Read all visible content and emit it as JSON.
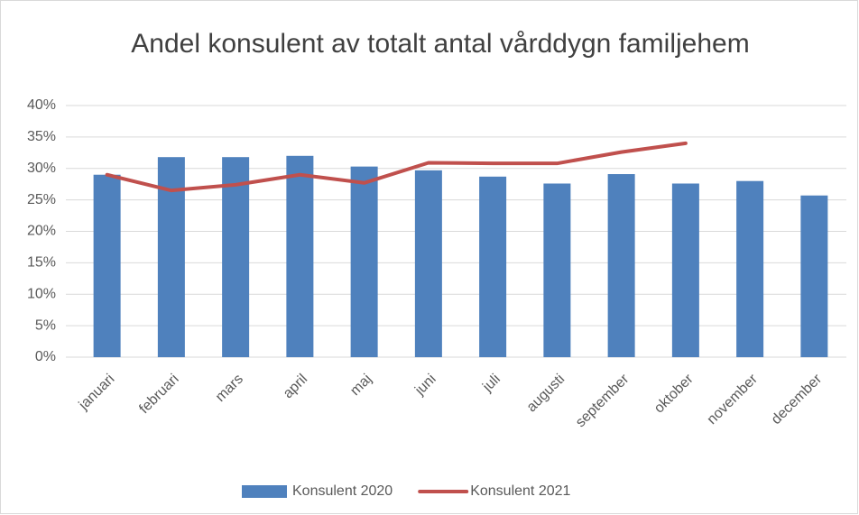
{
  "chart_data": {
    "type": "bar",
    "title": "Andel konsulent av totalt antal vårddygn familjehem",
    "categories": [
      "januari",
      "februari",
      "mars",
      "april",
      "maj",
      "juni",
      "juli",
      "augusti",
      "september",
      "oktober",
      "november",
      "december"
    ],
    "series": [
      {
        "name": "Konsulent 2020",
        "type": "bar",
        "color": "#4f81bd",
        "values": [
          29.0,
          31.8,
          31.8,
          32.0,
          30.3,
          29.7,
          28.7,
          27.6,
          29.1,
          27.6,
          28.0,
          25.7
        ]
      },
      {
        "name": "Konsulent 2021",
        "type": "line",
        "color": "#c0504d",
        "values": [
          29.0,
          26.5,
          27.4,
          29.0,
          27.7,
          30.9,
          30.8,
          30.8,
          32.6,
          34.0,
          null,
          null
        ]
      }
    ],
    "ylim": [
      0,
      40
    ],
    "yticks": [
      {
        "value": 0,
        "label": "0%"
      },
      {
        "value": 5,
        "label": "5%"
      },
      {
        "value": 10,
        "label": "10%"
      },
      {
        "value": 15,
        "label": "15%"
      },
      {
        "value": 20,
        "label": "20%"
      },
      {
        "value": 25,
        "label": "25%"
      },
      {
        "value": 30,
        "label": "30%"
      },
      {
        "value": 35,
        "label": "35%"
      },
      {
        "value": 40,
        "label": "40%"
      }
    ],
    "grid": true,
    "legend": "bottom"
  }
}
